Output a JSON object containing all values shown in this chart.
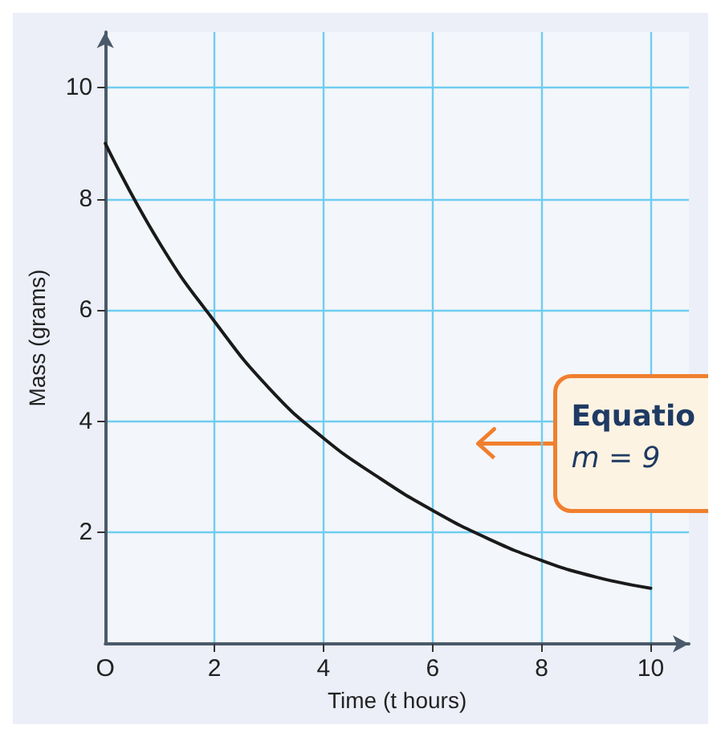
{
  "chart_data": {
    "type": "line",
    "xlabel": "Time (t hours)",
    "ylabel": "Mass (grams)",
    "x": [
      0,
      1,
      2,
      3,
      4,
      5,
      6,
      7,
      8,
      9,
      10
    ],
    "series": [
      {
        "color": "#1a1a1a",
        "values": [
          9,
          7.2,
          5.8,
          4.6,
          3.7,
          3.0,
          2.4,
          1.9,
          1.5,
          1.2,
          1.0
        ]
      }
    ],
    "xlim": [
      0,
      10.7
    ],
    "xticks": [
      {
        "value": 0,
        "label": "O"
      },
      2,
      4,
      6,
      8,
      10
    ],
    "ylim": [
      0,
      11
    ],
    "yticks": [
      2,
      4,
      6,
      8,
      10
    ],
    "grid": true,
    "marker": "none",
    "line_style": "solid",
    "annotations": [
      "Equatio",
      "m = 9"
    ]
  }
}
